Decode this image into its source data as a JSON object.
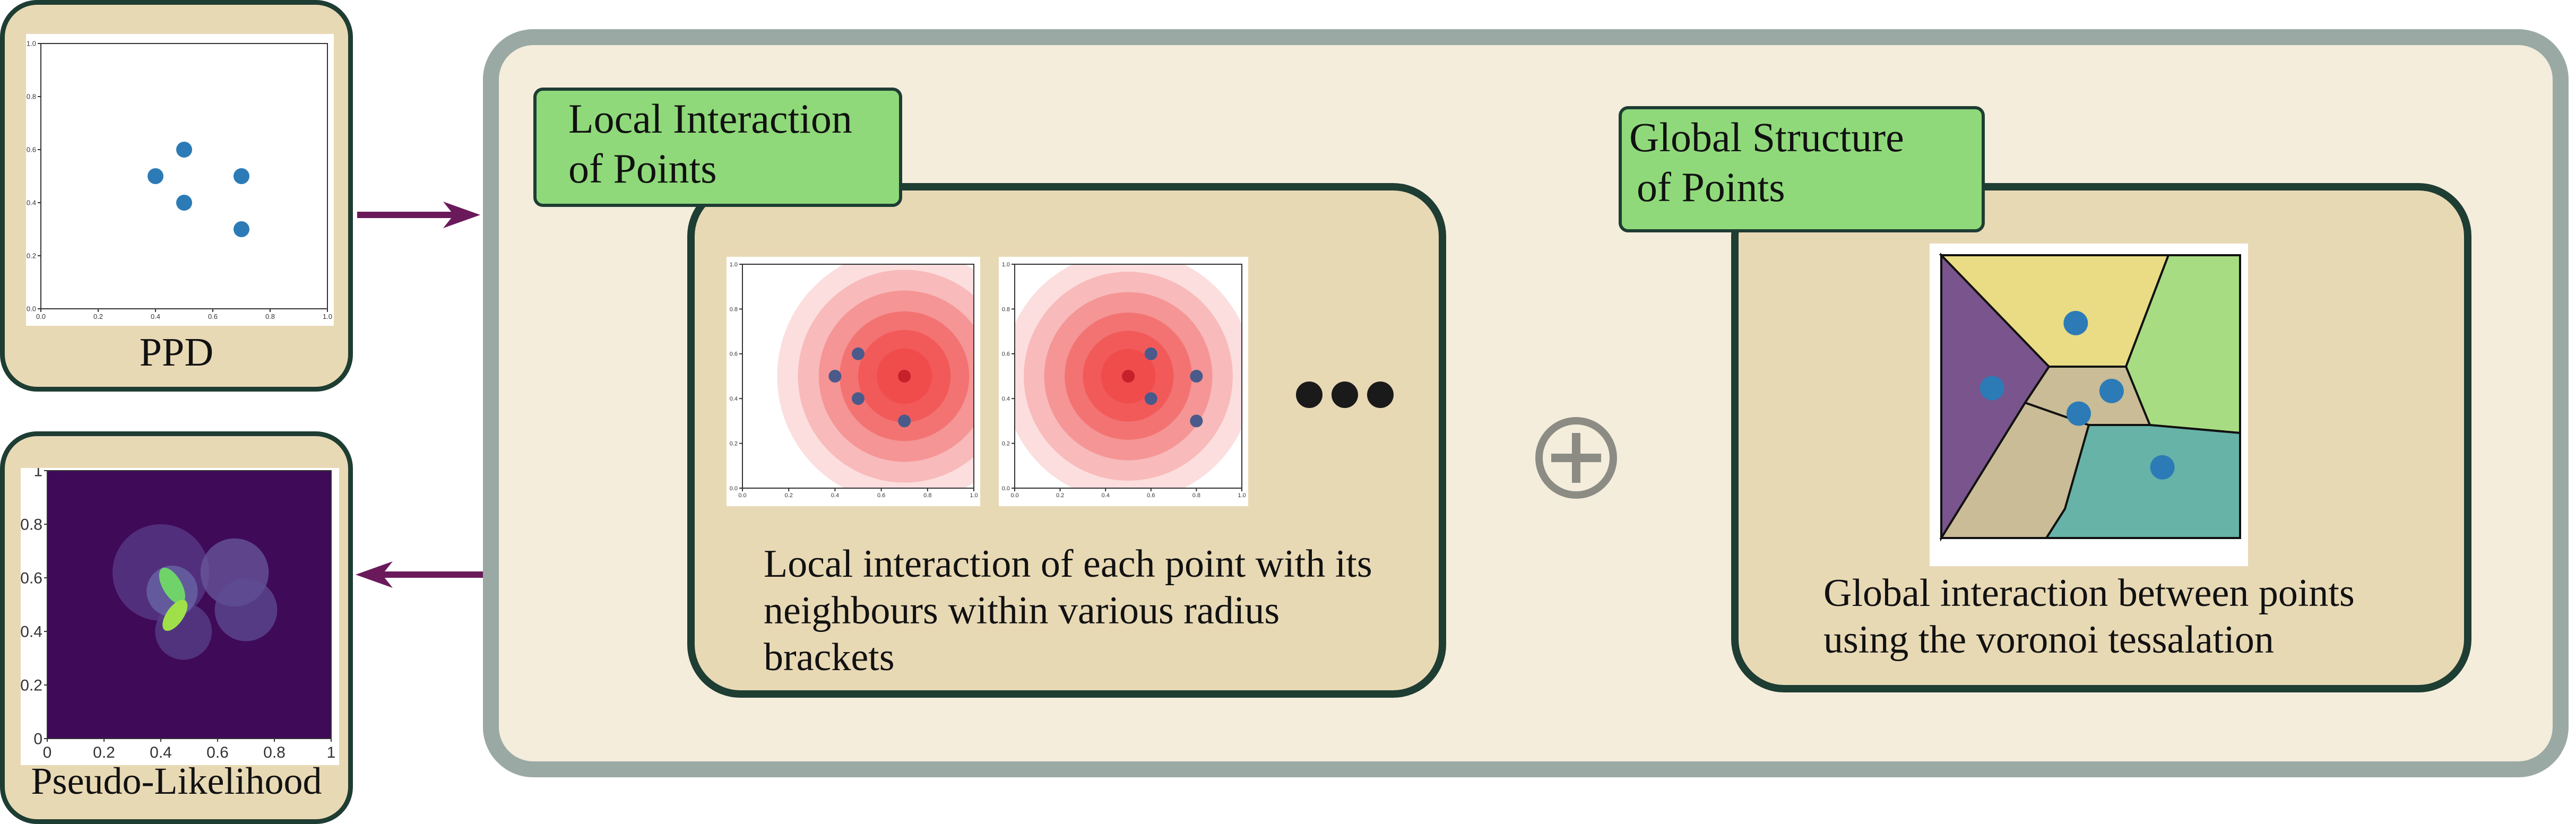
{
  "ppd_panel": {
    "caption": "PPD",
    "points": [
      [
        0.5,
        0.6
      ],
      [
        0.4,
        0.5
      ],
      [
        0.7,
        0.5
      ],
      [
        0.5,
        0.4
      ],
      [
        0.7,
        0.3
      ]
    ],
    "ticks": [
      "0.0",
      "0.2",
      "0.4",
      "0.6",
      "0.8",
      "1.0"
    ]
  },
  "likelihood_panel": {
    "caption": "Pseudo-Likelihood",
    "ticks": [
      "0",
      "0.2",
      "0.4",
      "0.6",
      "0.8",
      "1"
    ]
  },
  "local_section": {
    "tag_line1": "Local Interaction",
    "tag_line2": "of Points",
    "description": "Local interaction of each point with its neighbours within various radius brackets",
    "ticks": [
      "0.0",
      "0.2",
      "0.4",
      "0.6",
      "0.8",
      "1.0"
    ],
    "plots": [
      {
        "center": [
          0.7,
          0.5
        ],
        "points": [
          [
            0.5,
            0.6
          ],
          [
            0.4,
            0.5
          ],
          [
            0.7,
            0.5
          ],
          [
            0.5,
            0.4
          ],
          [
            0.7,
            0.3
          ]
        ]
      },
      {
        "center": [
          0.5,
          0.5
        ],
        "points": [
          [
            0.6,
            0.6
          ],
          [
            0.5,
            0.5
          ],
          [
            0.6,
            0.4
          ],
          [
            0.8,
            0.5
          ],
          [
            0.8,
            0.3
          ]
        ]
      }
    ]
  },
  "global_section": {
    "tag_line1": "Global Structure",
    "tag_line2": "of Points",
    "description": "Global interaction between points using the voronoi tessalation",
    "colors": {
      "yellow": "#e9dc84",
      "green": "#a8dc82",
      "purple": "#7a548c",
      "tan": "#c9bc96",
      "teal": "#67b3a8"
    }
  },
  "colors": {
    "point": "#2c7bb6",
    "arrow": "#6a1a5a",
    "plus": "#8c8c84"
  }
}
